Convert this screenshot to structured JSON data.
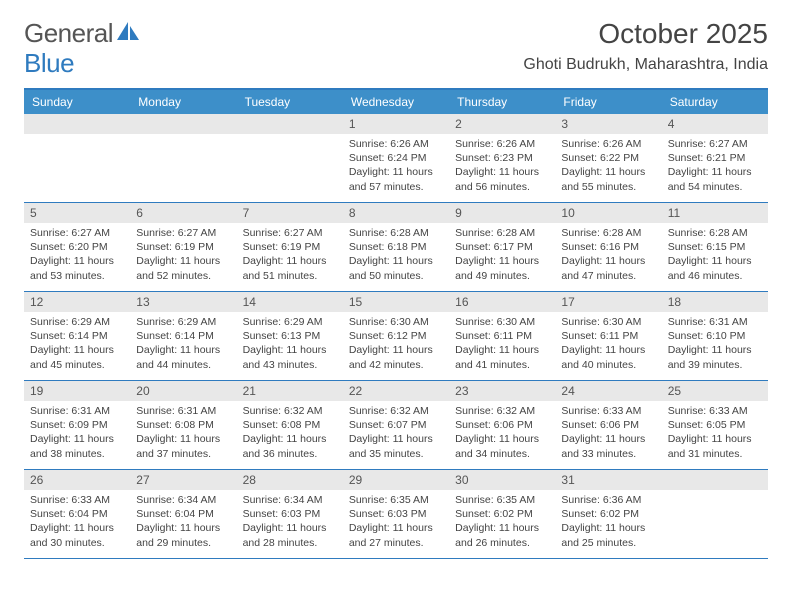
{
  "brand": {
    "part1": "General",
    "part2": "Blue"
  },
  "title": "October 2025",
  "location": "Ghoti Budrukh, Maharashtra, India",
  "colors": {
    "header_bg": "#3d8fc9",
    "border": "#2f7bbf",
    "daynum_bg": "#e8e8e8",
    "text": "#444444",
    "white": "#ffffff"
  },
  "day_names": [
    "Sunday",
    "Monday",
    "Tuesday",
    "Wednesday",
    "Thursday",
    "Friday",
    "Saturday"
  ],
  "weeks": [
    [
      {
        "n": "",
        "sr": "",
        "ss": "",
        "dl": ""
      },
      {
        "n": "",
        "sr": "",
        "ss": "",
        "dl": ""
      },
      {
        "n": "",
        "sr": "",
        "ss": "",
        "dl": ""
      },
      {
        "n": "1",
        "sr": "Sunrise: 6:26 AM",
        "ss": "Sunset: 6:24 PM",
        "dl": "Daylight: 11 hours and 57 minutes."
      },
      {
        "n": "2",
        "sr": "Sunrise: 6:26 AM",
        "ss": "Sunset: 6:23 PM",
        "dl": "Daylight: 11 hours and 56 minutes."
      },
      {
        "n": "3",
        "sr": "Sunrise: 6:26 AM",
        "ss": "Sunset: 6:22 PM",
        "dl": "Daylight: 11 hours and 55 minutes."
      },
      {
        "n": "4",
        "sr": "Sunrise: 6:27 AM",
        "ss": "Sunset: 6:21 PM",
        "dl": "Daylight: 11 hours and 54 minutes."
      }
    ],
    [
      {
        "n": "5",
        "sr": "Sunrise: 6:27 AM",
        "ss": "Sunset: 6:20 PM",
        "dl": "Daylight: 11 hours and 53 minutes."
      },
      {
        "n": "6",
        "sr": "Sunrise: 6:27 AM",
        "ss": "Sunset: 6:19 PM",
        "dl": "Daylight: 11 hours and 52 minutes."
      },
      {
        "n": "7",
        "sr": "Sunrise: 6:27 AM",
        "ss": "Sunset: 6:19 PM",
        "dl": "Daylight: 11 hours and 51 minutes."
      },
      {
        "n": "8",
        "sr": "Sunrise: 6:28 AM",
        "ss": "Sunset: 6:18 PM",
        "dl": "Daylight: 11 hours and 50 minutes."
      },
      {
        "n": "9",
        "sr": "Sunrise: 6:28 AM",
        "ss": "Sunset: 6:17 PM",
        "dl": "Daylight: 11 hours and 49 minutes."
      },
      {
        "n": "10",
        "sr": "Sunrise: 6:28 AM",
        "ss": "Sunset: 6:16 PM",
        "dl": "Daylight: 11 hours and 47 minutes."
      },
      {
        "n": "11",
        "sr": "Sunrise: 6:28 AM",
        "ss": "Sunset: 6:15 PM",
        "dl": "Daylight: 11 hours and 46 minutes."
      }
    ],
    [
      {
        "n": "12",
        "sr": "Sunrise: 6:29 AM",
        "ss": "Sunset: 6:14 PM",
        "dl": "Daylight: 11 hours and 45 minutes."
      },
      {
        "n": "13",
        "sr": "Sunrise: 6:29 AM",
        "ss": "Sunset: 6:14 PM",
        "dl": "Daylight: 11 hours and 44 minutes."
      },
      {
        "n": "14",
        "sr": "Sunrise: 6:29 AM",
        "ss": "Sunset: 6:13 PM",
        "dl": "Daylight: 11 hours and 43 minutes."
      },
      {
        "n": "15",
        "sr": "Sunrise: 6:30 AM",
        "ss": "Sunset: 6:12 PM",
        "dl": "Daylight: 11 hours and 42 minutes."
      },
      {
        "n": "16",
        "sr": "Sunrise: 6:30 AM",
        "ss": "Sunset: 6:11 PM",
        "dl": "Daylight: 11 hours and 41 minutes."
      },
      {
        "n": "17",
        "sr": "Sunrise: 6:30 AM",
        "ss": "Sunset: 6:11 PM",
        "dl": "Daylight: 11 hours and 40 minutes."
      },
      {
        "n": "18",
        "sr": "Sunrise: 6:31 AM",
        "ss": "Sunset: 6:10 PM",
        "dl": "Daylight: 11 hours and 39 minutes."
      }
    ],
    [
      {
        "n": "19",
        "sr": "Sunrise: 6:31 AM",
        "ss": "Sunset: 6:09 PM",
        "dl": "Daylight: 11 hours and 38 minutes."
      },
      {
        "n": "20",
        "sr": "Sunrise: 6:31 AM",
        "ss": "Sunset: 6:08 PM",
        "dl": "Daylight: 11 hours and 37 minutes."
      },
      {
        "n": "21",
        "sr": "Sunrise: 6:32 AM",
        "ss": "Sunset: 6:08 PM",
        "dl": "Daylight: 11 hours and 36 minutes."
      },
      {
        "n": "22",
        "sr": "Sunrise: 6:32 AM",
        "ss": "Sunset: 6:07 PM",
        "dl": "Daylight: 11 hours and 35 minutes."
      },
      {
        "n": "23",
        "sr": "Sunrise: 6:32 AM",
        "ss": "Sunset: 6:06 PM",
        "dl": "Daylight: 11 hours and 34 minutes."
      },
      {
        "n": "24",
        "sr": "Sunrise: 6:33 AM",
        "ss": "Sunset: 6:06 PM",
        "dl": "Daylight: 11 hours and 33 minutes."
      },
      {
        "n": "25",
        "sr": "Sunrise: 6:33 AM",
        "ss": "Sunset: 6:05 PM",
        "dl": "Daylight: 11 hours and 31 minutes."
      }
    ],
    [
      {
        "n": "26",
        "sr": "Sunrise: 6:33 AM",
        "ss": "Sunset: 6:04 PM",
        "dl": "Daylight: 11 hours and 30 minutes."
      },
      {
        "n": "27",
        "sr": "Sunrise: 6:34 AM",
        "ss": "Sunset: 6:04 PM",
        "dl": "Daylight: 11 hours and 29 minutes."
      },
      {
        "n": "28",
        "sr": "Sunrise: 6:34 AM",
        "ss": "Sunset: 6:03 PM",
        "dl": "Daylight: 11 hours and 28 minutes."
      },
      {
        "n": "29",
        "sr": "Sunrise: 6:35 AM",
        "ss": "Sunset: 6:03 PM",
        "dl": "Daylight: 11 hours and 27 minutes."
      },
      {
        "n": "30",
        "sr": "Sunrise: 6:35 AM",
        "ss": "Sunset: 6:02 PM",
        "dl": "Daylight: 11 hours and 26 minutes."
      },
      {
        "n": "31",
        "sr": "Sunrise: 6:36 AM",
        "ss": "Sunset: 6:02 PM",
        "dl": "Daylight: 11 hours and 25 minutes."
      },
      {
        "n": "",
        "sr": "",
        "ss": "",
        "dl": ""
      }
    ]
  ]
}
